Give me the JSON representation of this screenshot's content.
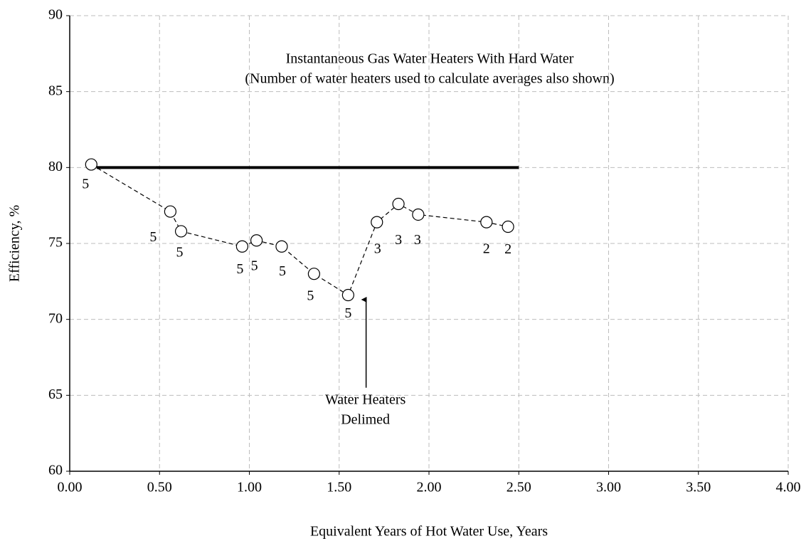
{
  "chart_data": {
    "type": "line",
    "title": "Instantaneous Gas Water Heaters With Hard Water",
    "subtitle": "(Number of water heaters used to calculate averages also shown)",
    "x_label": "Equivalent Years of Hot Water Use, Years",
    "y_label": "Efficiency, %",
    "x": [
      0.12,
      0.56,
      0.62,
      0.96,
      1.04,
      1.18,
      1.36,
      1.55,
      1.71,
      1.83,
      1.94,
      2.32,
      2.44
    ],
    "series": [
      {
        "color": "#000000",
        "values": [
          80.2,
          77.1,
          75.8,
          74.8,
          75.2,
          74.8,
          73.0,
          71.6,
          76.4,
          77.6,
          76.9,
          76.4,
          76.1
        ]
      }
    ],
    "counts": [
      5,
      5,
      5,
      5,
      5,
      5,
      5,
      5,
      3,
      3,
      3,
      2,
      2
    ],
    "reference_line": {
      "y": 80,
      "x": [
        0.15,
        2.5
      ],
      "color": "#000000"
    },
    "annotation": {
      "text": [
        "Water Heaters",
        "Delimed"
      ],
      "x": 1.65,
      "y": 71.3,
      "from_y": 65.5
    },
    "xlim": [
      0,
      4
    ],
    "ylim": [
      60,
      90
    ],
    "xticks": [
      {
        "value": 0,
        "label": "0.00"
      },
      {
        "value": 0.5,
        "label": "0.50"
      },
      {
        "value": 1,
        "label": "1.00"
      },
      {
        "value": 1.5,
        "label": "1.50"
      },
      {
        "value": 2,
        "label": "2.00"
      },
      {
        "value": 2.5,
        "label": "2.50"
      },
      {
        "value": 3,
        "label": "3.00"
      },
      {
        "value": 3.5,
        "label": "3.50"
      },
      {
        "value": 4,
        "label": "4.00"
      }
    ],
    "yticks": [
      60,
      65,
      70,
      75,
      80,
      85,
      90
    ],
    "grid": true
  }
}
